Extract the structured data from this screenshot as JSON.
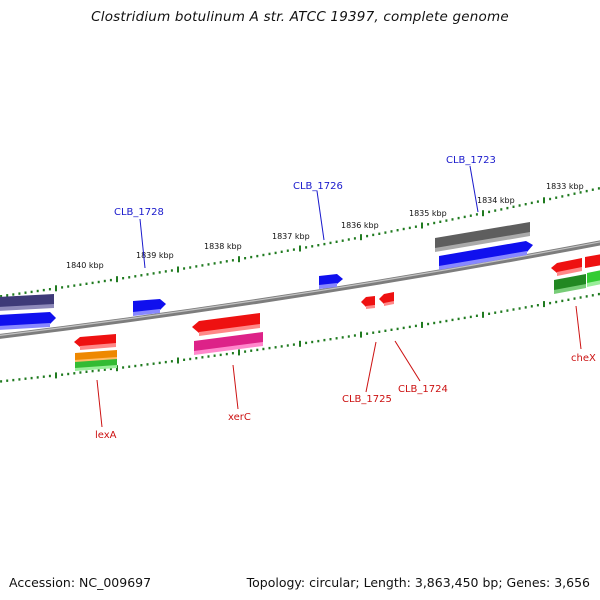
{
  "title": "Clostridium botulinum A str. ATCC 19397, complete genome",
  "footer": {
    "accession": "Accession: NC_009697",
    "summary": "Topology: circular; Length: 3,863,450 bp; Genes: 3,656"
  },
  "kbp_labels": [
    "1840 kbp",
    "1839 kbp",
    "1838 kbp",
    "1837 kbp",
    "1836 kbp",
    "1835 kbp",
    "1834 kbp",
    "1833 kbp"
  ],
  "gene_labels": {
    "forward": [
      "CLB_1728",
      "CLB_1726",
      "CLB_1723"
    ],
    "reverse": [
      "lexA",
      "xerC",
      "CLB_1725",
      "CLB_1724",
      "cheX"
    ]
  },
  "colors": {
    "forward_label": "#1a1acc",
    "reverse_label": "#cc1111",
    "tick": "#1f7a1f",
    "backbone": "#808080"
  }
}
